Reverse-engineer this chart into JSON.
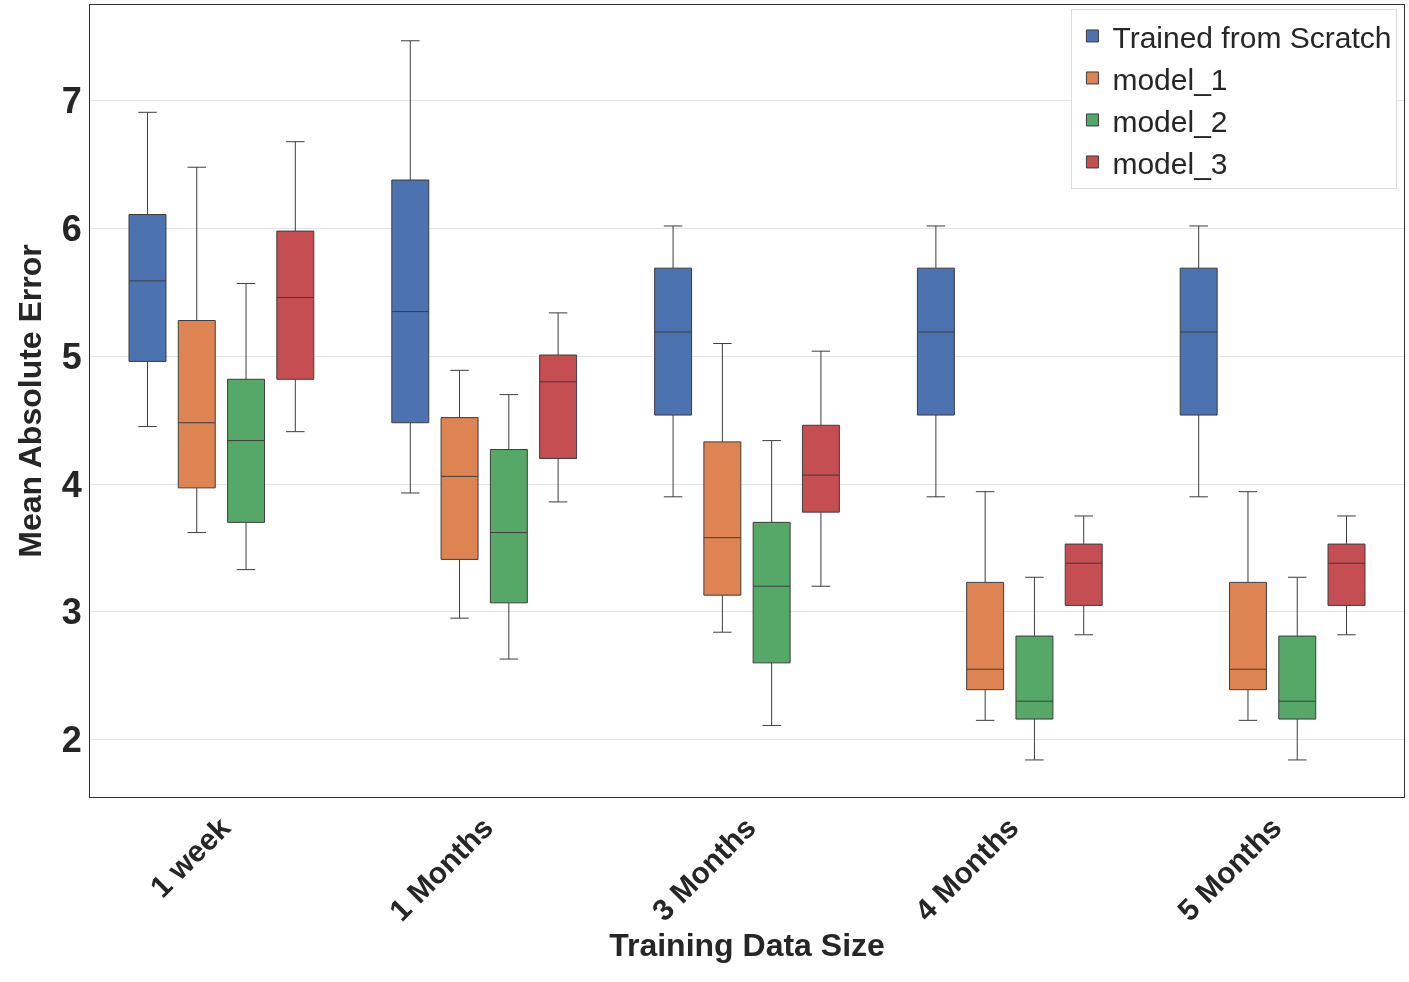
{
  "chart_data": {
    "type": "box",
    "xlabel": "Training Data Size",
    "ylabel": "Mean Absolute Error",
    "categories": [
      "1 week",
      "1 Months",
      "3 Months",
      "4 Months",
      "5 Months"
    ],
    "ylim": [
      1.55,
      7.75
    ],
    "yticks": [
      2,
      3,
      4,
      5,
      6,
      7
    ],
    "grid": "y",
    "legend": "top right",
    "series": [
      {
        "name": "Trained from Scratch",
        "color": "#4c72b0",
        "boxes": [
          {
            "low": 4.45,
            "q1": 4.96,
            "median": 5.59,
            "q3": 6.11,
            "high": 6.91
          },
          {
            "low": 3.93,
            "q1": 4.48,
            "median": 5.35,
            "q3": 6.38,
            "high": 7.47
          },
          {
            "low": 3.9,
            "q1": 4.54,
            "median": 5.19,
            "q3": 5.69,
            "high": 6.02
          },
          {
            "low": 3.9,
            "q1": 4.54,
            "median": 5.19,
            "q3": 5.69,
            "high": 6.02
          },
          {
            "low": 3.9,
            "q1": 4.54,
            "median": 5.19,
            "q3": 5.69,
            "high": 6.02
          }
        ]
      },
      {
        "name": "model_1",
        "color": "#dd8452",
        "boxes": [
          {
            "low": 3.62,
            "q1": 3.97,
            "median": 4.48,
            "q3": 5.28,
            "high": 6.48
          },
          {
            "low": 2.95,
            "q1": 3.41,
            "median": 4.06,
            "q3": 4.52,
            "high": 4.89
          },
          {
            "low": 2.84,
            "q1": 3.13,
            "median": 3.58,
            "q3": 4.33,
            "high": 5.1
          },
          {
            "low": 2.15,
            "q1": 2.39,
            "median": 2.55,
            "q3": 3.23,
            "high": 3.94
          },
          {
            "low": 2.15,
            "q1": 2.39,
            "median": 2.55,
            "q3": 3.23,
            "high": 3.94
          }
        ]
      },
      {
        "name": "model_2",
        "color": "#55a868",
        "boxes": [
          {
            "low": 3.33,
            "q1": 3.7,
            "median": 4.34,
            "q3": 4.82,
            "high": 5.57
          },
          {
            "low": 2.63,
            "q1": 3.07,
            "median": 3.62,
            "q3": 4.27,
            "high": 4.7
          },
          {
            "low": 2.11,
            "q1": 2.6,
            "median": 3.2,
            "q3": 3.7,
            "high": 4.34
          },
          {
            "low": 1.84,
            "q1": 2.16,
            "median": 2.3,
            "q3": 2.81,
            "high": 3.27
          },
          {
            "low": 1.84,
            "q1": 2.16,
            "median": 2.3,
            "q3": 2.81,
            "high": 3.27
          }
        ]
      },
      {
        "name": "model_3",
        "color": "#c44e52",
        "boxes": [
          {
            "low": 4.41,
            "q1": 4.82,
            "median": 5.46,
            "q3": 5.98,
            "high": 6.68
          },
          {
            "low": 3.86,
            "q1": 4.2,
            "median": 4.8,
            "q3": 5.01,
            "high": 5.34
          },
          {
            "low": 3.2,
            "q1": 3.78,
            "median": 4.07,
            "q3": 4.46,
            "high": 5.04
          },
          {
            "low": 2.82,
            "q1": 3.05,
            "median": 3.38,
            "q3": 3.53,
            "high": 3.75
          },
          {
            "low": 2.82,
            "q1": 3.05,
            "median": 3.38,
            "q3": 3.53,
            "high": 3.75
          }
        ]
      }
    ]
  }
}
